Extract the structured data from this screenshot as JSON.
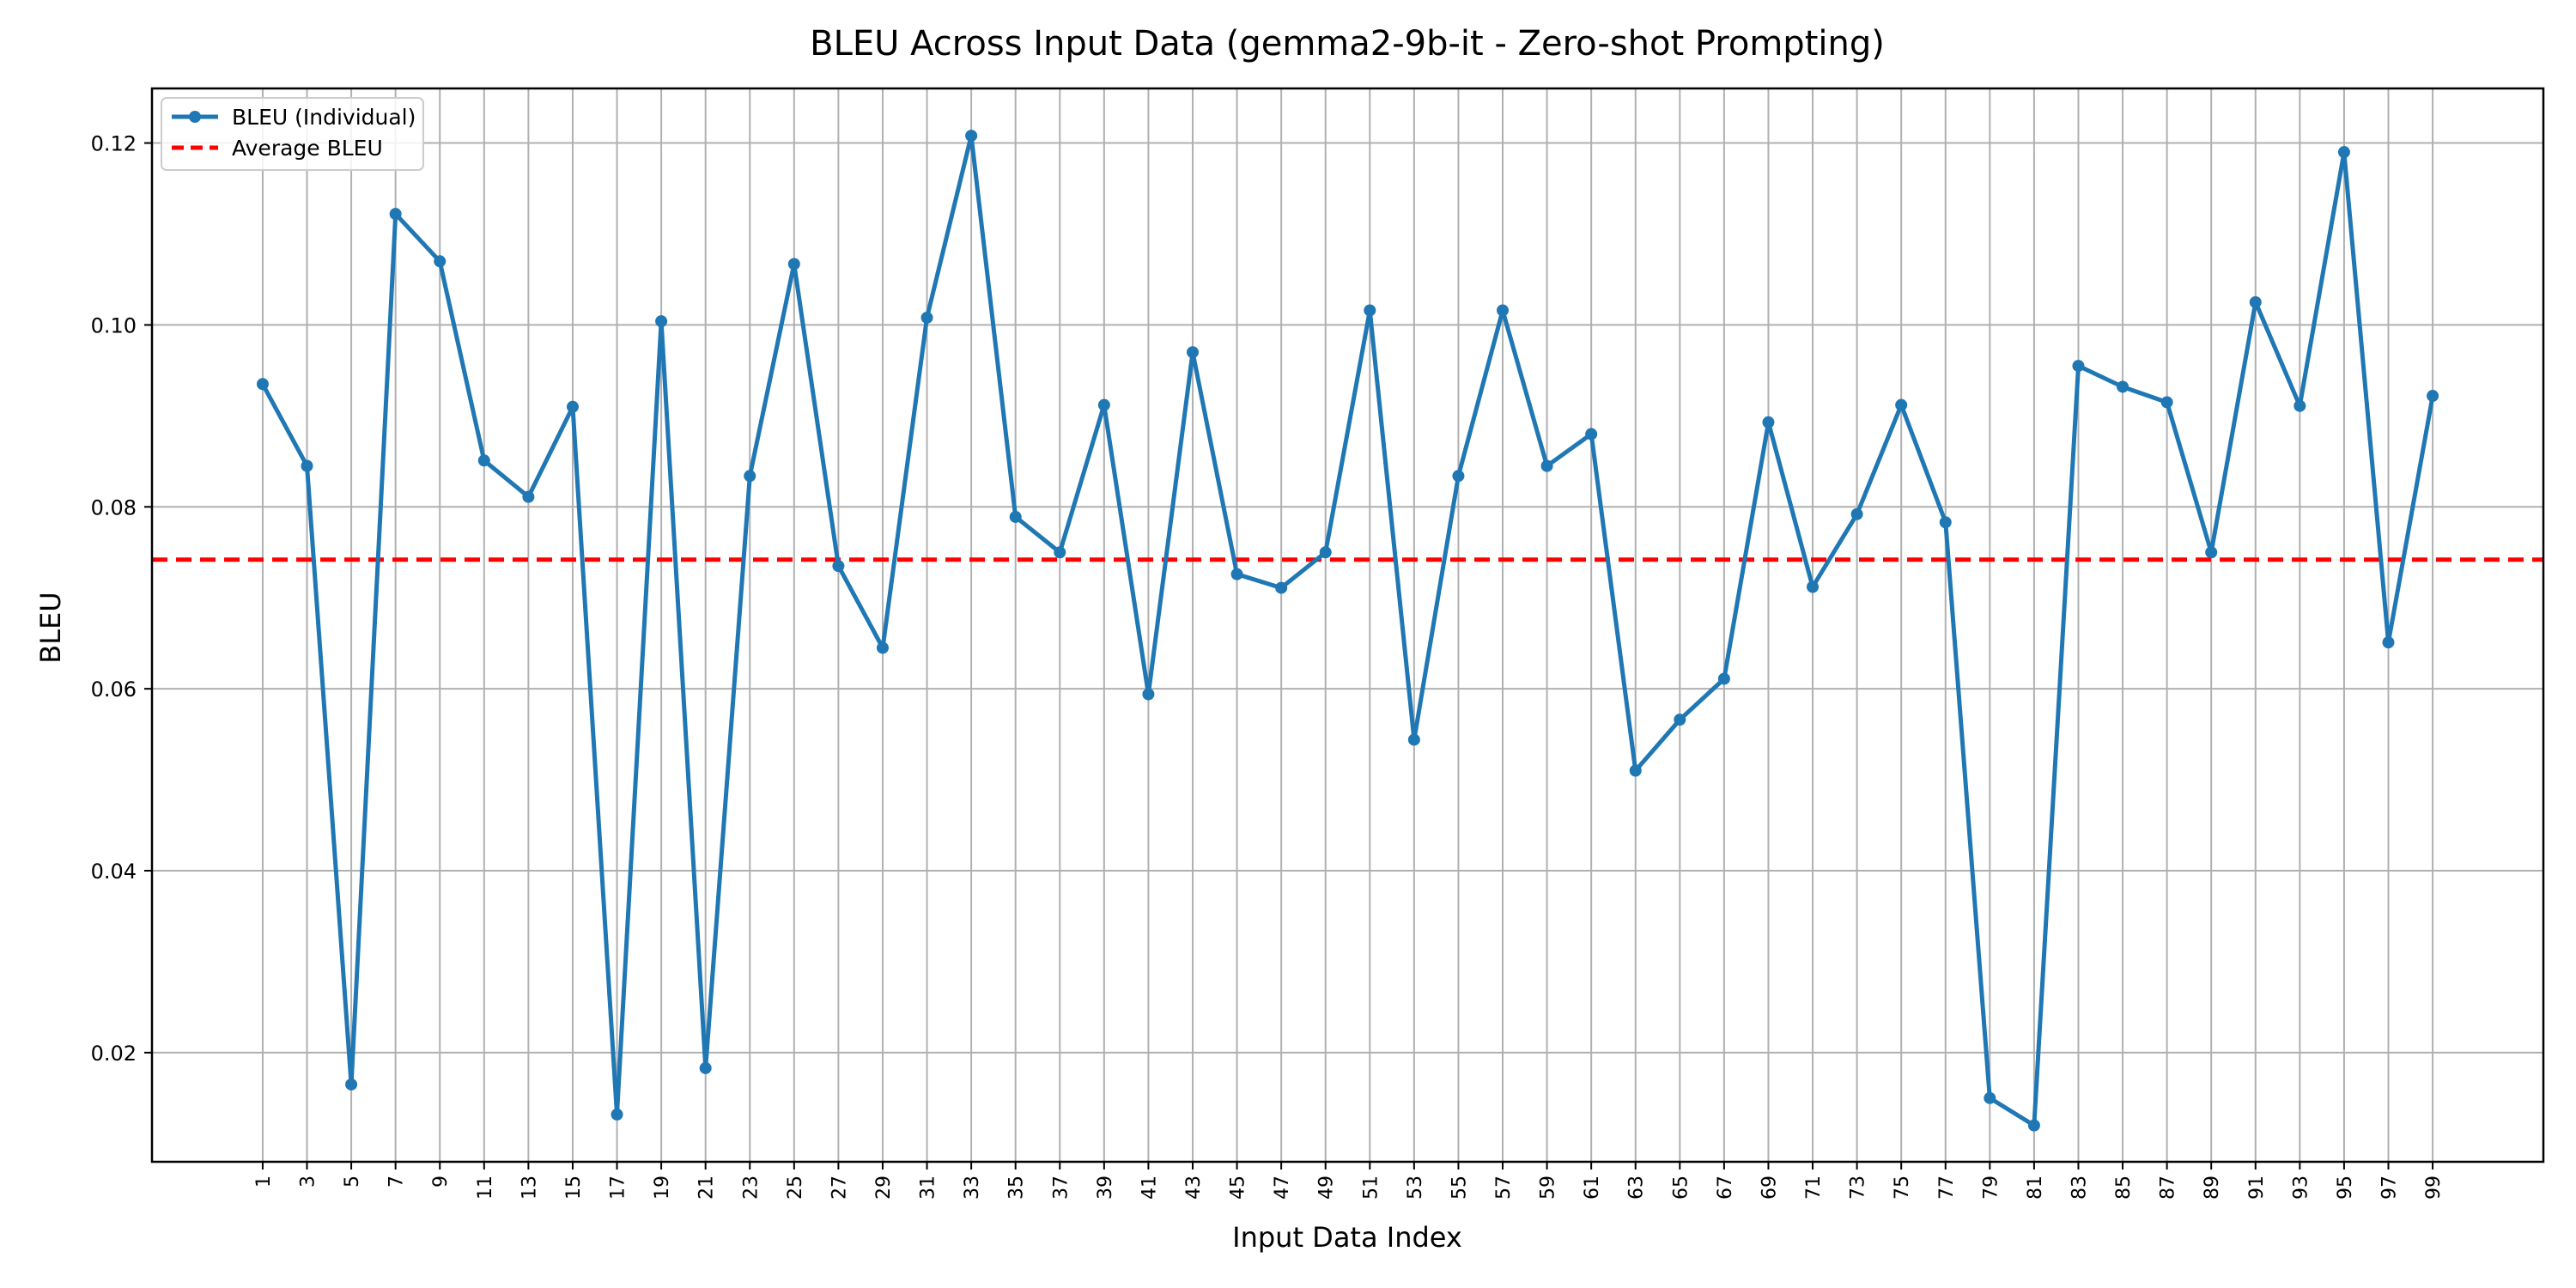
{
  "chart_data": {
    "type": "line",
    "title": "BLEU Across Input Data (gemma2-9b-it - Zero-shot Prompting)",
    "xlabel": "Input Data Index",
    "ylabel": "BLEU",
    "ylim": [
      0.008,
      0.126
    ],
    "y_ticks": [
      0.02,
      0.04,
      0.06,
      0.08,
      0.1,
      0.12
    ],
    "y_tick_labels": [
      "0.02",
      "0.04",
      "0.06",
      "0.08",
      "0.10",
      "0.12"
    ],
    "grid": true,
    "legend_position": "top-left",
    "x": [
      1,
      3,
      5,
      7,
      9,
      11,
      13,
      15,
      17,
      19,
      21,
      23,
      25,
      27,
      29,
      31,
      33,
      35,
      37,
      39,
      41,
      43,
      45,
      47,
      49,
      51,
      53,
      55,
      57,
      59,
      61,
      63,
      65,
      67,
      69,
      71,
      73,
      75,
      77,
      79,
      81,
      83,
      85,
      87,
      89,
      91,
      93,
      95,
      97,
      99
    ],
    "series": [
      {
        "name": "BLEU (Individual)",
        "color": "#1f77b4",
        "style": "solid-with-markers",
        "values": [
          0.0935,
          0.0845,
          0.0165,
          0.1122,
          0.107,
          0.0851,
          0.0811,
          0.091,
          0.0132,
          0.1004,
          0.0183,
          0.0834,
          0.1067,
          0.0735,
          0.0645,
          0.1008,
          0.1208,
          0.0789,
          0.075,
          0.0912,
          0.0594,
          0.097,
          0.0726,
          0.0711,
          0.075,
          0.1016,
          0.0544,
          0.0834,
          0.1016,
          0.0845,
          0.088,
          0.051,
          0.0566,
          0.0611,
          0.0893,
          0.0712,
          0.0792,
          0.0912,
          0.0783,
          0.015,
          0.012,
          0.0955,
          0.0932,
          0.0915,
          0.075,
          0.1025,
          0.0911,
          0.119,
          0.0651,
          0.0922
        ]
      },
      {
        "name": "Average BLEU",
        "color": "#ff0000",
        "style": "dashed",
        "value": 0.0742
      }
    ]
  }
}
